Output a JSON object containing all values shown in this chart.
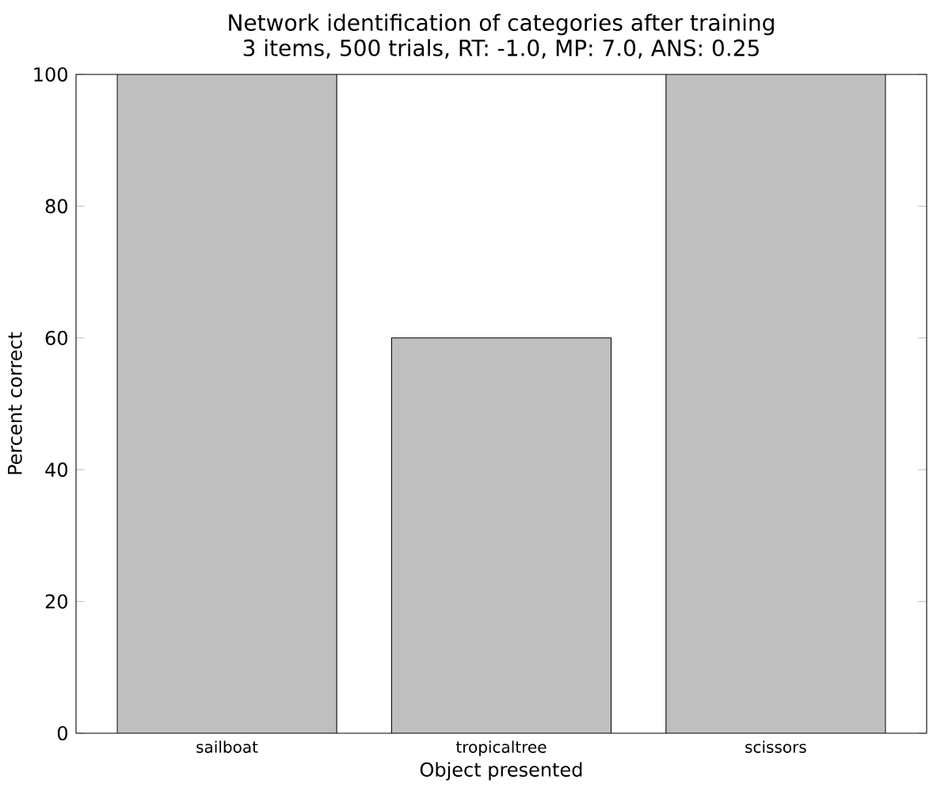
{
  "chart_data": {
    "type": "bar",
    "title": "Network identification of categories after training",
    "subtitle": "3 items, 500 trials, RT: -1.0, MP: 7.0, ANS: 0.25",
    "xlabel": "Object presented",
    "ylabel": "Percent correct",
    "categories": [
      "sailboat",
      "tropicaltree",
      "scissors"
    ],
    "values": [
      100,
      60,
      100
    ],
    "color": "#bfbfbf",
    "ylim": [
      0,
      100
    ],
    "yticks": [
      0,
      20,
      40,
      60,
      80,
      100
    ]
  }
}
